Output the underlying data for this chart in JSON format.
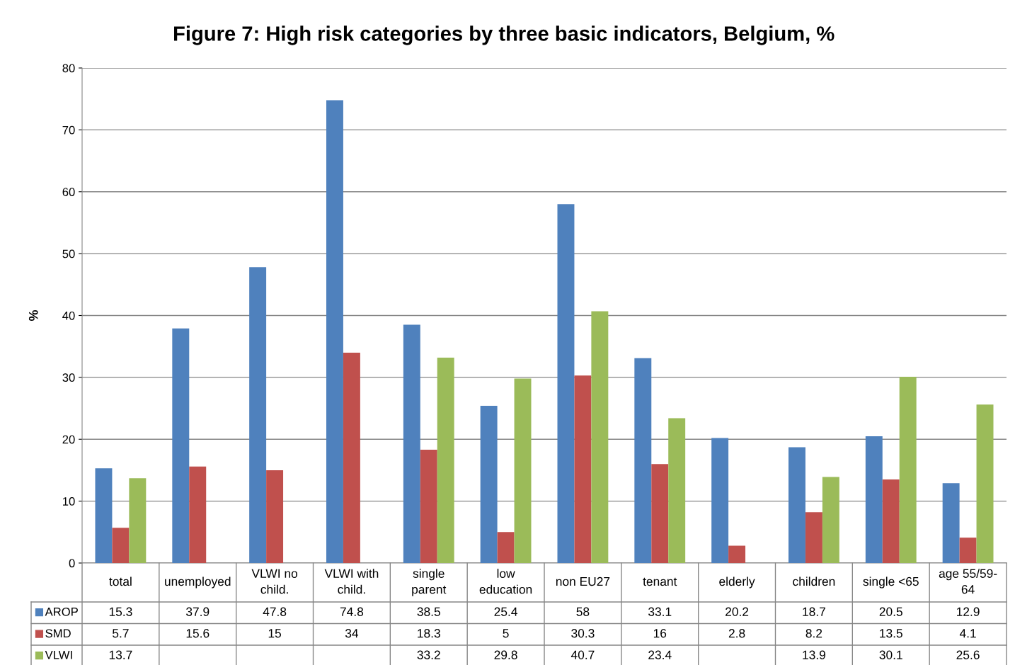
{
  "chart_data": {
    "type": "bar",
    "title": "Figure 7: High risk categories by three basic indicators, Belgium, %",
    "ylabel": "%",
    "categories": [
      "total",
      "unemployed",
      "VLWI no\nchild.",
      "VLWI with\nchild.",
      "single\nparent",
      "low\neducation",
      "non EU27",
      "tenant",
      "elderly",
      "children",
      "single <65",
      "age 55/59-\n64"
    ],
    "series": [
      {
        "name": "AROP",
        "color": "#4f81bd",
        "values": [
          15.3,
          37.9,
          47.8,
          74.8,
          38.5,
          25.4,
          58,
          33.1,
          20.2,
          18.7,
          20.5,
          12.9
        ]
      },
      {
        "name": "SMD",
        "color": "#c0504d",
        "values": [
          5.7,
          15.6,
          15,
          34,
          18.3,
          5,
          30.3,
          16,
          2.8,
          8.2,
          13.5,
          4.1
        ]
      },
      {
        "name": "VLWI",
        "color": "#9bbb59",
        "values": [
          13.7,
          null,
          null,
          null,
          33.2,
          29.8,
          40.7,
          23.4,
          null,
          13.9,
          30.1,
          25.6
        ]
      }
    ],
    "ylim": [
      0,
      80
    ],
    "yticks": [
      0,
      10,
      20,
      30,
      40,
      50,
      60,
      70,
      80
    ],
    "grid": "y",
    "data_labels": true,
    "legend": "bottom"
  }
}
